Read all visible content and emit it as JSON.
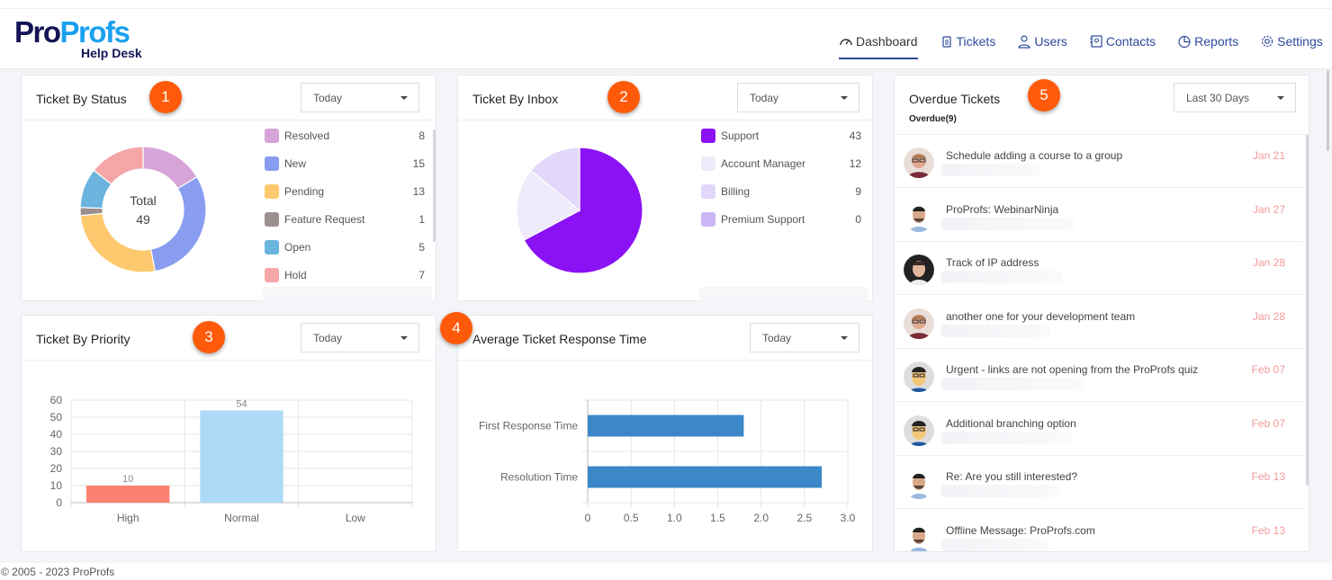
{
  "header": {
    "logo": {
      "part1": "Pro",
      "part2": "Profs",
      "subtitle": "Help Desk"
    },
    "nav": [
      {
        "label": "Dashboard",
        "icon": "gauge-icon",
        "active": true
      },
      {
        "label": "Tickets",
        "icon": "ticket-icon"
      },
      {
        "label": "Users",
        "icon": "user-icon"
      },
      {
        "label": "Contacts",
        "icon": "contacts-icon"
      },
      {
        "label": "Reports",
        "icon": "pie-chart-icon"
      },
      {
        "label": "Settings",
        "icon": "gear-icon"
      }
    ]
  },
  "status_card": {
    "title": "Ticket By Status",
    "badge": "1",
    "filter": "Today",
    "center_label": "Total",
    "total": "49",
    "items": [
      {
        "label": "Resolved",
        "value": 8,
        "color": "#d6a4d8"
      },
      {
        "label": "New",
        "value": 15,
        "color": "#889df0"
      },
      {
        "label": "Pending",
        "value": 13,
        "color": "#fec96e"
      },
      {
        "label": "Feature Request",
        "value": 1,
        "color": "#9b8f8f"
      },
      {
        "label": "Open",
        "value": 5,
        "color": "#6ab4de"
      },
      {
        "label": "Hold",
        "value": 7,
        "color": "#f6a6a6"
      }
    ]
  },
  "inbox_card": {
    "title": "Ticket By Inbox",
    "badge": "2",
    "filter": "Today",
    "items": [
      {
        "label": "Support",
        "value": 43,
        "color": "#8b12f5"
      },
      {
        "label": "Account Manager",
        "value": 12,
        "color": "#efebfb"
      },
      {
        "label": "Billing",
        "value": 9,
        "color": "#e2d8fa"
      },
      {
        "label": "Premium Support",
        "value": 0,
        "color": "#cbb6f5"
      }
    ]
  },
  "priority_card": {
    "title": "Ticket By Priority",
    "badge": "3",
    "filter": "Today"
  },
  "response_card": {
    "title": "Average Ticket Response Time",
    "badge": "4",
    "filter": "Today"
  },
  "overdue_card": {
    "title": "Overdue Tickets",
    "badge": "5",
    "filter": "Last 30 Days",
    "subtitle": "Overdue(9)",
    "tickets": [
      {
        "subject": "Schedule adding a course to a group",
        "date": "Jan 21",
        "avatar": "glasses"
      },
      {
        "subject": "ProProfs: WebinarNinja",
        "date": "Jan 27",
        "avatar": "man"
      },
      {
        "subject": "Track of IP address",
        "date": "Jan 28",
        "avatar": "dark"
      },
      {
        "subject": "another one for your development team",
        "date": "Jan 28",
        "avatar": "glasses"
      },
      {
        "subject": "Urgent - links are not opening from the ProProfs quiz",
        "date": "Feb 07",
        "avatar": "cartoon"
      },
      {
        "subject": "Additional branching option",
        "date": "Feb 07",
        "avatar": "cartoon"
      },
      {
        "subject": "Re: Are you still interested?",
        "date": "Feb 13",
        "avatar": "man"
      },
      {
        "subject": "Offline Message: ProProfs.com",
        "date": "Feb 13",
        "avatar": "man"
      }
    ]
  },
  "chart_data": [
    {
      "type": "pie",
      "variant": "donut",
      "categories": [
        "Resolved",
        "New",
        "Pending",
        "Feature Request",
        "Open",
        "Hold"
      ],
      "values": [
        8,
        15,
        13,
        1,
        5,
        7
      ],
      "colors": [
        "#d6a4d8",
        "#889df0",
        "#fec96e",
        "#9b8f8f",
        "#6ab4de",
        "#f6a6a6"
      ]
    },
    {
      "type": "pie",
      "categories": [
        "Support",
        "Account Manager",
        "Billing",
        "Premium Support"
      ],
      "values": [
        43,
        12,
        9,
        0
      ],
      "colors": [
        "#8b12f5",
        "#efebfb",
        "#e2d8fa",
        "#cbb6f5"
      ]
    },
    {
      "type": "bar",
      "orientation": "vertical",
      "categories": [
        "High",
        "Normal",
        "Low"
      ],
      "values": [
        10,
        54,
        0
      ],
      "data_labels": [
        "10",
        "54",
        ""
      ],
      "colors": [
        "#fc8170",
        "#aedaf8",
        "#cccccc"
      ],
      "ylim": [
        0,
        60
      ],
      "yticks": [
        0,
        10,
        20,
        30,
        40,
        50,
        60
      ],
      "grid": true
    },
    {
      "type": "bar",
      "orientation": "horizontal",
      "categories": [
        "First Response Time",
        "Resolution Time"
      ],
      "values": [
        1.8,
        2.7
      ],
      "color": "#3b87c8",
      "xlim": [
        0,
        3.0
      ],
      "xticks": [
        "0",
        "0.5",
        "1.0",
        "1.5",
        "2.0",
        "2.5",
        "3.0"
      ],
      "grid": true
    }
  ],
  "footer": {
    "copyright": "© 2005 - 2023 ProProfs"
  }
}
